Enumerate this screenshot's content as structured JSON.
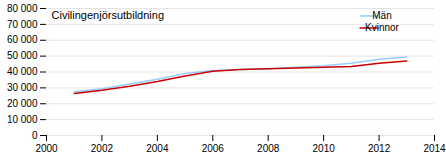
{
  "chart_data": {
    "type": "line",
    "title": "Civilingenjörsutbildning",
    "x": [
      2001,
      2002,
      2003,
      2004,
      2005,
      2006,
      2007,
      2008,
      2009,
      2010,
      2011,
      2012,
      2013
    ],
    "series": [
      {
        "name": "Män",
        "color": "#99ccff",
        "values": [
          27500,
          29500,
          32500,
          35500,
          39000,
          41000,
          41500,
          42000,
          43000,
          44000,
          45500,
          48000,
          49500
        ]
      },
      {
        "name": "Kvinnor",
        "color": "#cc0000",
        "values": [
          26500,
          28500,
          31000,
          34000,
          37500,
          40500,
          41500,
          42000,
          42500,
          43000,
          43500,
          45500,
          47000
        ]
      }
    ],
    "xlim": [
      2000,
      2014
    ],
    "xticks": [
      2000,
      2002,
      2004,
      2006,
      2008,
      2010,
      2012,
      2014
    ],
    "ylim": [
      0,
      80000
    ],
    "yticks": [
      0,
      {
        "value": 10000,
        "label": "10 000"
      },
      {
        "value": 20000,
        "label": "20 000"
      },
      {
        "value": 30000,
        "label": "30 000"
      },
      {
        "value": 40000,
        "label": "40 000"
      },
      {
        "value": 50000,
        "label": "50 000"
      },
      {
        "value": 60000,
        "label": "60 000"
      },
      {
        "value": 70000,
        "label": "70 000"
      },
      {
        "value": 80000,
        "label": "80 000"
      }
    ],
    "grid": true,
    "legend": "upper right"
  }
}
